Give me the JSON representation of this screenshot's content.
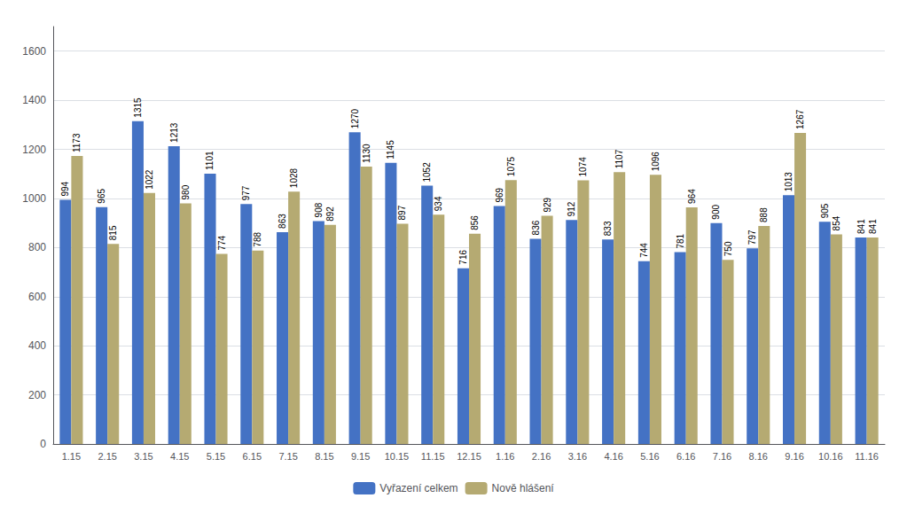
{
  "chart_data": {
    "type": "bar",
    "categories": [
      "1.15",
      "2.15",
      "3.15",
      "4.15",
      "5.15",
      "6.15",
      "7.15",
      "8.15",
      "9.15",
      "10.15",
      "11.15",
      "12.15",
      "1.16",
      "2.16",
      "3.16",
      "4.16",
      "5.16",
      "6.16",
      "7.16",
      "8.16",
      "9.16",
      "10.16",
      "11.16"
    ],
    "series": [
      {
        "name": "Vyřazení celkem",
        "color": "#4472C4",
        "values": [
          994,
          965,
          1315,
          1213,
          1101,
          977,
          863,
          908,
          1270,
          1145,
          1052,
          716,
          969,
          836,
          912,
          833,
          744,
          781,
          900,
          797,
          1013,
          905,
          841
        ]
      },
      {
        "name": "Nově hlášení",
        "color": "#B5AA72",
        "values": [
          1173,
          815,
          1022,
          980,
          774,
          788,
          1028,
          892,
          1130,
          897,
          934,
          856,
          1075,
          929,
          1074,
          1107,
          1096,
          964,
          750,
          888,
          1267,
          854,
          841
        ]
      }
    ],
    "ylim": [
      0,
      1700
    ],
    "yticks": [
      0,
      200,
      400,
      600,
      800,
      1000,
      1200,
      1400,
      1600
    ],
    "grid": true,
    "legend": "bottom",
    "data_labels": true
  }
}
